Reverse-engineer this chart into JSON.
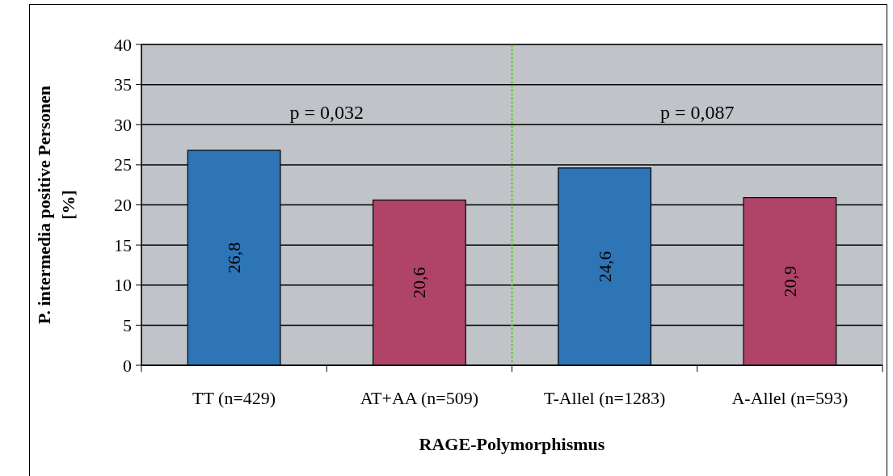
{
  "chart_data": {
    "type": "bar",
    "xlabel": "RAGE-Polymorphismus",
    "ylabel": "P. intermedia positive Personen [%]",
    "categories": [
      "TT (n=429)",
      "AT+AA (n=509)",
      "T-Allel (n=1283)",
      "A-Allel (n=593)"
    ],
    "values": [
      26.8,
      20.6,
      24.6,
      20.9
    ],
    "colors": [
      "#2e75b6",
      "#b04468",
      "#2e75b6",
      "#b04468"
    ],
    "value_labels": [
      "26,8",
      "20,6",
      "24,6",
      "20,9"
    ],
    "ylim": [
      0,
      40
    ],
    "yticks": [
      0,
      5,
      10,
      15,
      20,
      25,
      30,
      35,
      40
    ],
    "grid": "y",
    "annotations": [
      "p = 0,032",
      "p = 0,087"
    ]
  }
}
